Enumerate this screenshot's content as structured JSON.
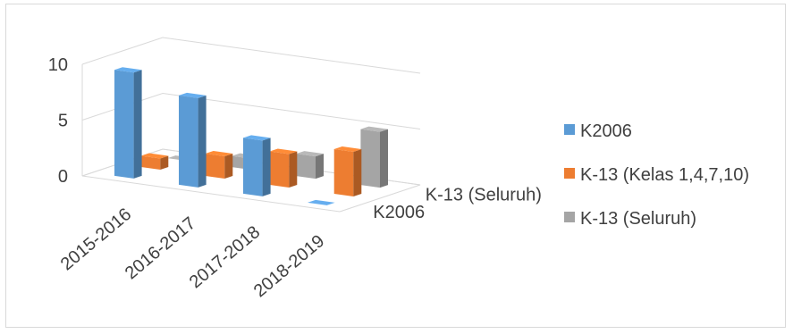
{
  "chart_data": {
    "type": "bar",
    "subtype": "3d-column",
    "title": "",
    "categories": [
      "2015-2016",
      "2016-2017",
      "2017-2018",
      "2018-2019"
    ],
    "depth_axis_labels": [
      "K-13 (Seluruh)",
      "K2006"
    ],
    "yticks": [
      0,
      5,
      10
    ],
    "ylim": [
      0,
      10
    ],
    "series": [
      {
        "name": "K2006",
        "values": [
          9.5,
          8,
          5,
          0
        ],
        "color": "#5B9BD5"
      },
      {
        "name": "K-13 (Kelas 1,4,7,10)",
        "values": [
          1,
          2,
          3,
          4
        ],
        "color": "#ED7D31"
      },
      {
        "name": "K-13 (Seluruh)",
        "values": [
          0,
          1,
          2,
          5
        ],
        "color": "#A5A5A5"
      }
    ],
    "legend_position": "right",
    "grid": true
  }
}
